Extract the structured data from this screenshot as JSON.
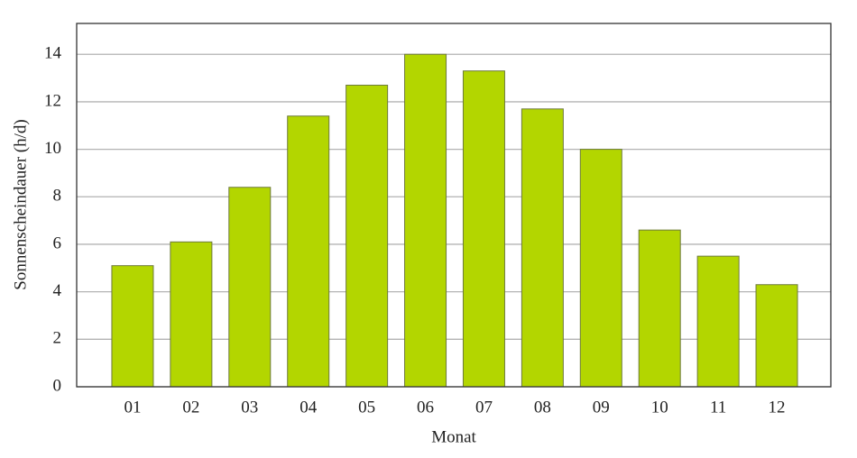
{
  "chart_data": {
    "type": "bar",
    "x_label": "Monat",
    "y_label": "Sonnenscheindauer (h/d)",
    "categories": [
      "01",
      "02",
      "03",
      "04",
      "05",
      "06",
      "07",
      "08",
      "09",
      "10",
      "11",
      "12"
    ],
    "values": [
      5.1,
      6.1,
      8.4,
      11.4,
      12.7,
      14.0,
      13.3,
      11.7,
      10.0,
      6.6,
      5.5,
      4.3
    ],
    "color": "#b3d600",
    "ylim": [
      0,
      15.3
    ],
    "yticks": [
      0,
      2,
      4,
      6,
      8,
      10,
      12,
      14
    ],
    "grid": true
  }
}
